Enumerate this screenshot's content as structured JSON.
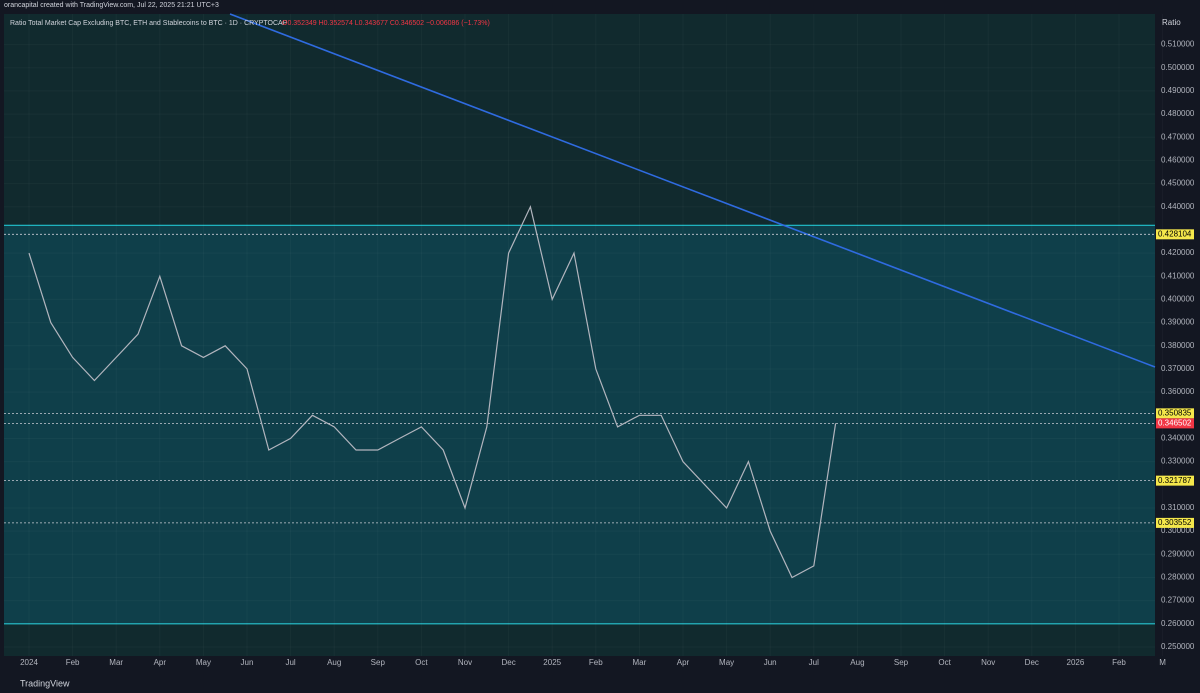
{
  "header": {
    "author": "orancapital created with TradingView.com, Jul 22, 2025 21:21 UTC+3"
  },
  "footer": {
    "brand": "TradingView"
  },
  "chart_data": {
    "type": "line",
    "title": "Ratio Total Market Cap Excluding BTC, ETH and Stablecoins to BTC · 1D · CRYPTOCAP",
    "subtitle": "O0.352349 H0.352574 L0.343677 C0.346502 −0.006086 (−1.73%)",
    "y_label": "Ratio",
    "xticks": [
      "2024",
      "Feb",
      "Mar",
      "Apr",
      "May",
      "Jun",
      "Jul",
      "Aug",
      "Sep",
      "Oct",
      "Nov",
      "Dec",
      "2025",
      "Feb",
      "Mar",
      "Apr",
      "May",
      "Jun",
      "Jul",
      "Aug",
      "Sep",
      "Oct",
      "Nov",
      "Dec",
      "2026",
      "Feb",
      "M"
    ],
    "series": [
      {
        "name": "Ratio",
        "color": "#b2b5be",
        "values": [
          0.42,
          0.39,
          0.375,
          0.365,
          0.375,
          0.385,
          0.41,
          0.38,
          0.375,
          0.38,
          0.37,
          0.335,
          0.34,
          0.35,
          0.345,
          0.335,
          0.335,
          0.34,
          0.345,
          0.335,
          0.31,
          0.345,
          0.42,
          0.44,
          0.4,
          0.42,
          0.37,
          0.345,
          0.35,
          0.35,
          0.33,
          0.32,
          0.31,
          0.33,
          0.3,
          0.28,
          0.285,
          0.3465
        ]
      }
    ],
    "zone": [
      0.26,
      0.432
    ],
    "levels": [
      {
        "value": 0.428104,
        "label": "0.428104",
        "color": "#f5e84b"
      },
      {
        "value": 0.350835,
        "label": "0.350835",
        "color": "#f5e84b"
      },
      {
        "value": 0.346502,
        "label": "0.346502",
        "color": "#f23645"
      },
      {
        "value": 0.321787,
        "label": "0.321787",
        "color": "#f5e84b"
      },
      {
        "value": 0.303552,
        "label": "0.303552",
        "color": "#f5e84b"
      }
    ],
    "ylim": [
      0.2461,
      0.5232
    ],
    "yticks": [
      {
        "value": 0.51,
        "label": "0.510000"
      },
      {
        "value": 0.5,
        "label": "0.500000"
      },
      {
        "value": 0.49,
        "label": "0.490000"
      },
      {
        "value": 0.48,
        "label": "0.480000"
      },
      {
        "value": 0.47,
        "label": "0.470000"
      },
      {
        "value": 0.46,
        "label": "0.460000"
      },
      {
        "value": 0.45,
        "label": "0.450000"
      },
      {
        "value": 0.44,
        "label": "0.440000"
      },
      {
        "value": 0.42,
        "label": "0.420000"
      },
      {
        "value": 0.41,
        "label": "0.410000"
      },
      {
        "value": 0.4,
        "label": "0.400000"
      },
      {
        "value": 0.39,
        "label": "0.390000"
      },
      {
        "value": 0.38,
        "label": "0.380000"
      },
      {
        "value": 0.37,
        "label": "0.370000"
      },
      {
        "value": 0.36,
        "label": "0.360000"
      },
      {
        "value": 0.34,
        "label": "0.340000"
      },
      {
        "value": 0.33,
        "label": "0.330000"
      },
      {
        "value": 0.31,
        "label": "0.310000"
      },
      {
        "value": 0.3,
        "label": "0.300000"
      },
      {
        "value": 0.29,
        "label": "0.290000"
      },
      {
        "value": 0.28,
        "label": "0.280000"
      },
      {
        "value": 0.27,
        "label": "0.270000"
      },
      {
        "value": 0.26,
        "label": "0.260000"
      },
      {
        "value": 0.25,
        "label": "0.250000"
      }
    ],
    "grid": true
  }
}
